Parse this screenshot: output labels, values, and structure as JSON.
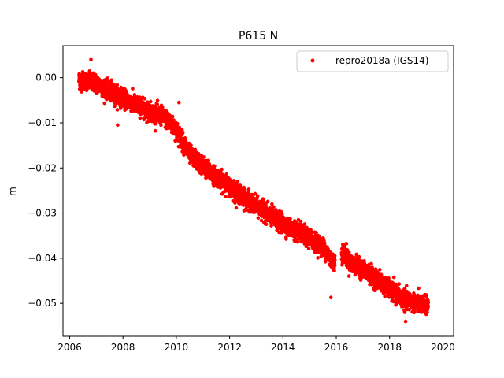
{
  "chart_data": {
    "type": "scatter",
    "title": "P615 N",
    "xlabel": "",
    "ylabel": "m",
    "xlim": [
      2005.75,
      2020.4
    ],
    "ylim": [
      -0.0573,
      0.0071
    ],
    "x_ticks": [
      2006,
      2008,
      2010,
      2012,
      2014,
      2016,
      2018,
      2020
    ],
    "x_tick_labels": [
      "2006",
      "2008",
      "2010",
      "2012",
      "2014",
      "2016",
      "2018",
      "2020"
    ],
    "y_ticks": [
      0.0,
      -0.01,
      -0.02,
      -0.03,
      -0.04,
      -0.05
    ],
    "y_tick_labels": [
      "0.00",
      "−0.01",
      "−0.02",
      "−0.03",
      "−0.04",
      "−0.05"
    ],
    "grid": false,
    "legend_position": "top-right",
    "series": [
      {
        "name": "repro2018a (IGS14)",
        "color": "#ff0000",
        "marker": "circle",
        "trend": {
          "x": [
            2006.35,
            2007.0,
            2007.5,
            2008.0,
            2008.5,
            2009.0,
            2009.5,
            2010.0,
            2010.5,
            2011.0,
            2011.5,
            2012.0,
            2012.5,
            2013.0,
            2013.5,
            2014.0,
            2014.5,
            2015.0,
            2015.5,
            2015.9,
            2016.3,
            2016.5,
            2017.0,
            2017.5,
            2018.0,
            2018.5,
            2019.0,
            2019.45
          ],
          "y": [
            -0.0005,
            -0.0012,
            -0.003,
            -0.0045,
            -0.006,
            -0.0075,
            -0.0085,
            -0.0115,
            -0.017,
            -0.0195,
            -0.022,
            -0.024,
            -0.0265,
            -0.0285,
            -0.0305,
            -0.0325,
            -0.034,
            -0.0355,
            -0.0375,
            -0.041,
            -0.0385,
            -0.041,
            -0.0425,
            -0.0445,
            -0.047,
            -0.049,
            -0.05,
            -0.0505
          ]
        },
        "spread": 0.0016,
        "outliers": [
          {
            "x": 2006.8,
            "y": 0.004
          },
          {
            "x": 2007.8,
            "y": -0.0105
          },
          {
            "x": 2010.1,
            "y": -0.0055
          },
          {
            "x": 2015.8,
            "y": -0.0487
          },
          {
            "x": 2018.6,
            "y": -0.054
          }
        ]
      }
    ]
  }
}
